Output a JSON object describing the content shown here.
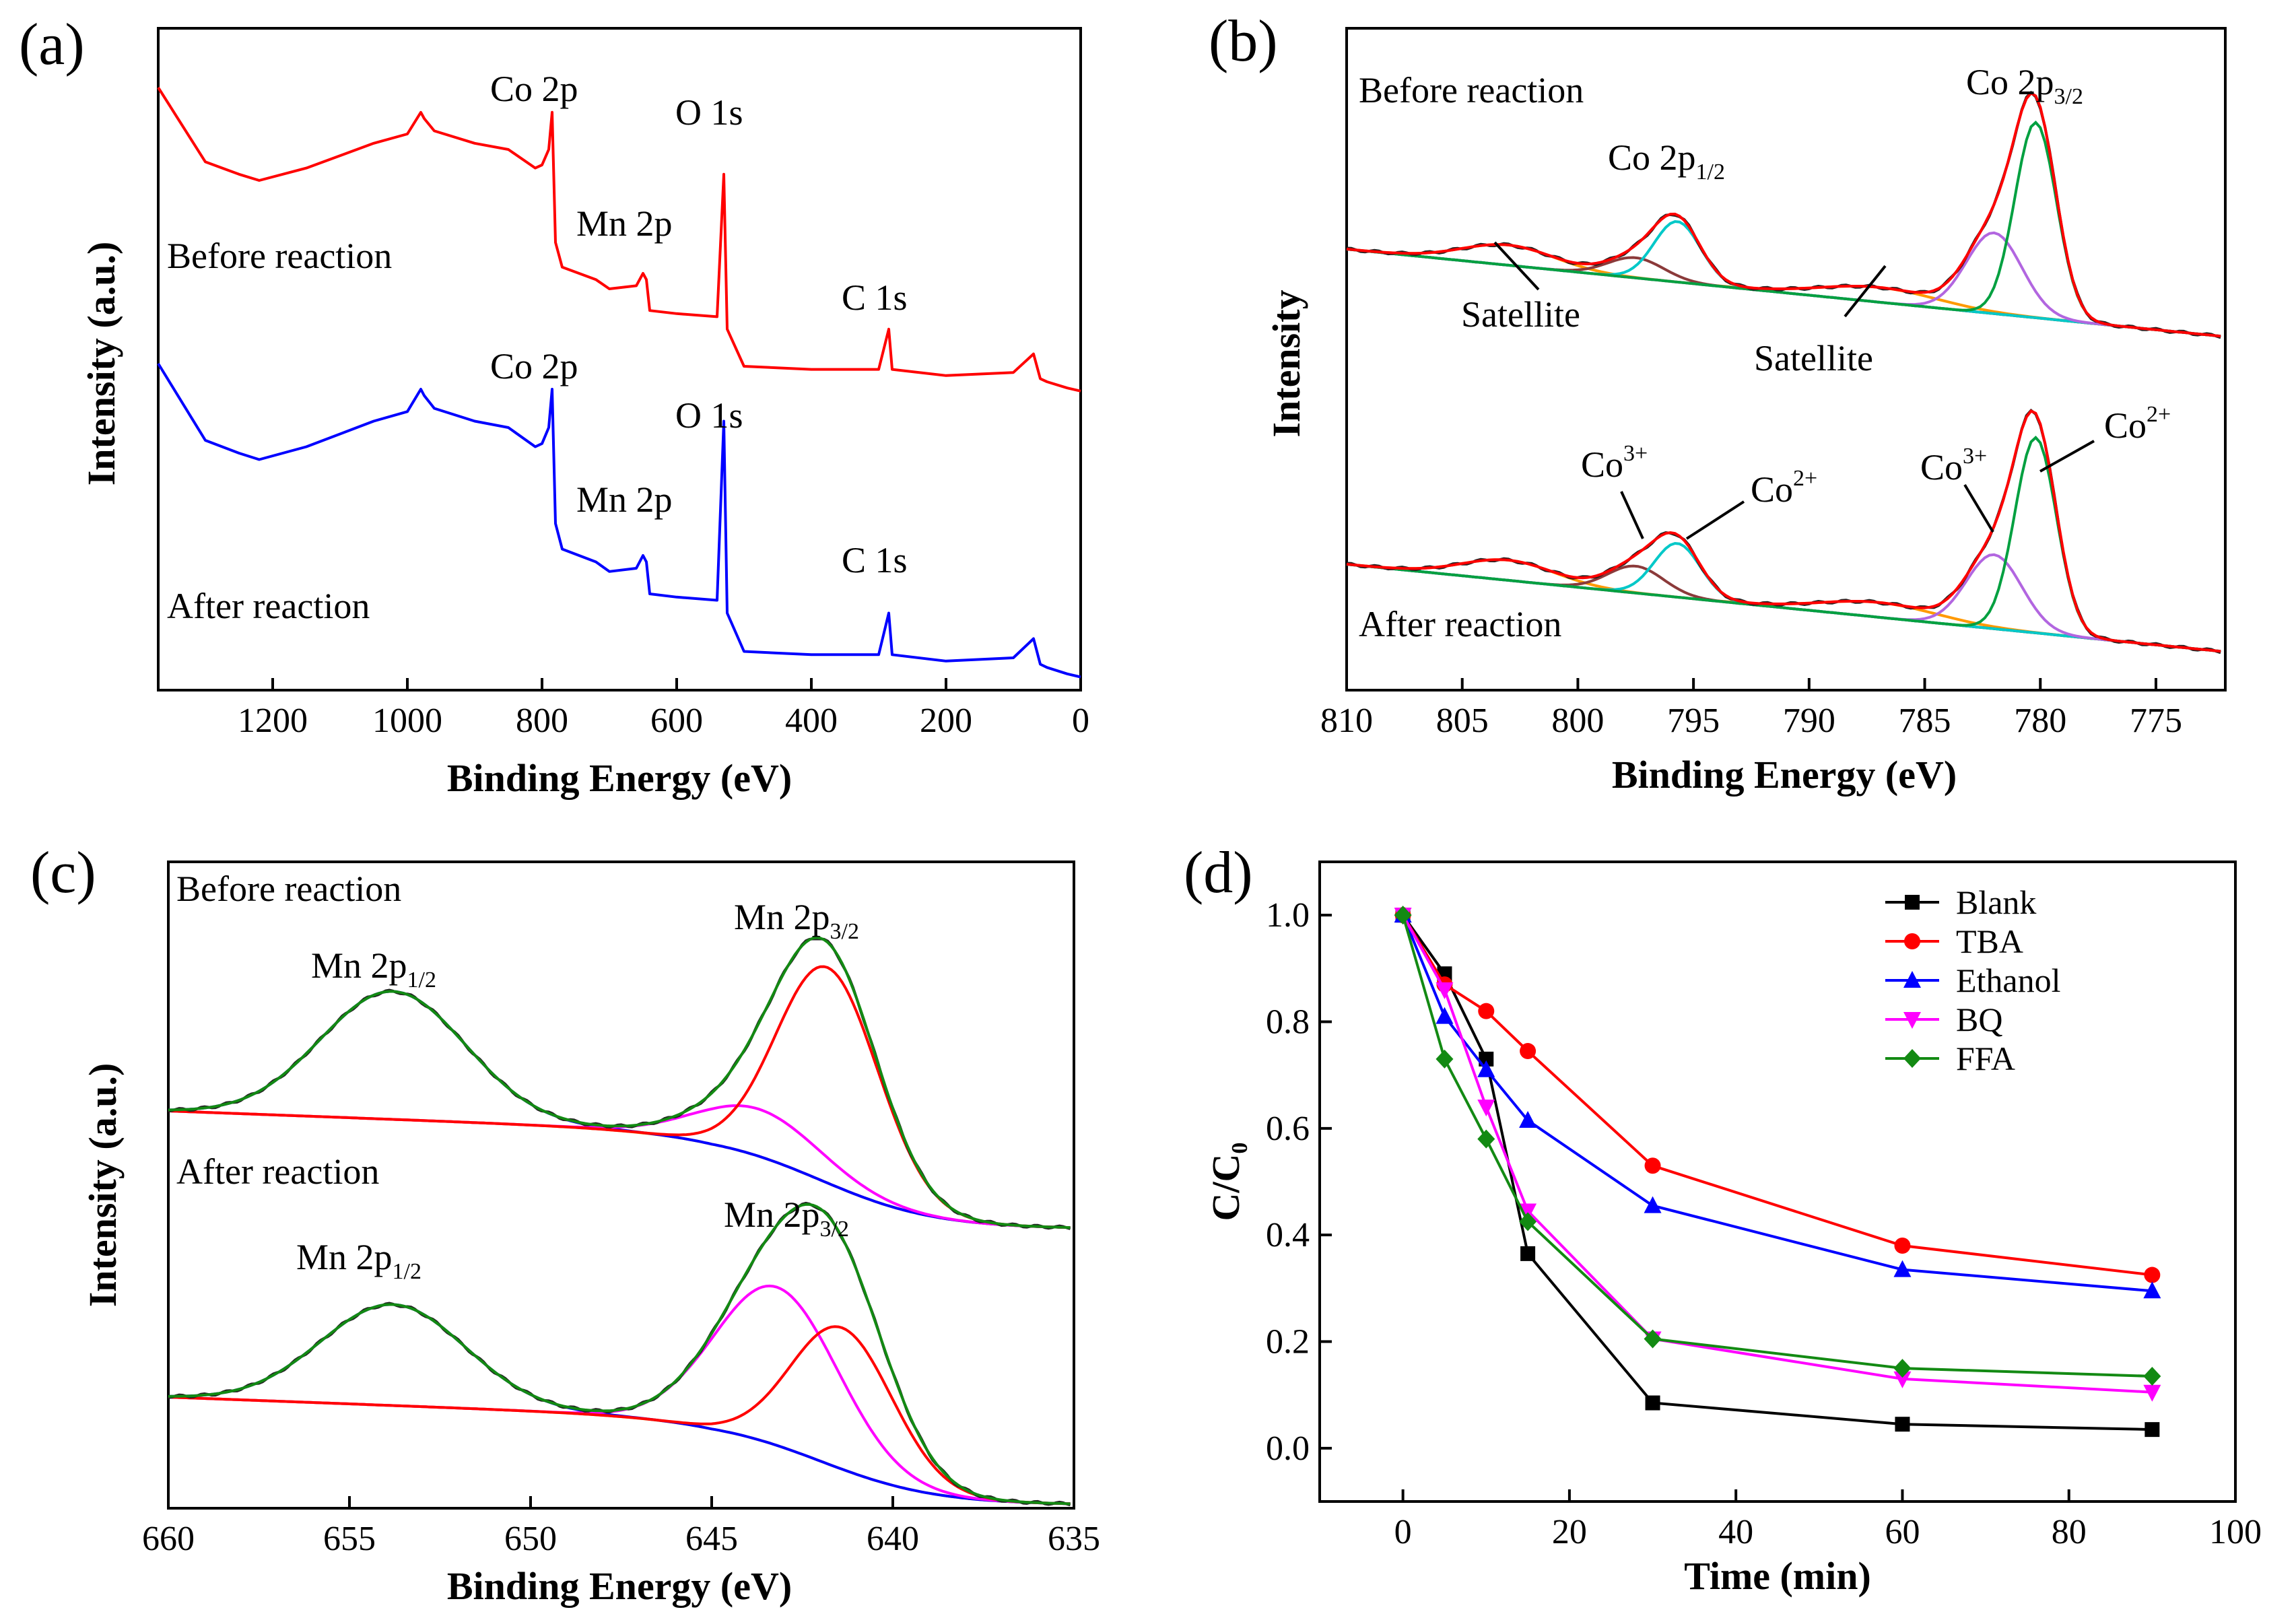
{
  "colors": {
    "red": "#ff0000",
    "blue": "#0000ff",
    "black": "#000000",
    "cyan": "#00c8c8",
    "green": "#00a040",
    "purple": "#b266e0",
    "brown": "#8b3a3a",
    "orange": "#ff9900",
    "olive": "#a09a20",
    "magenta": "#ff00ff",
    "darkgreen": "#138a13"
  },
  "chart_data": [
    {
      "panel": "(a)",
      "type": "line",
      "xlabel": "Binding Energy (eV)",
      "ylabel": "Intensity (a.u.)",
      "xlim": [
        1370,
        0
      ],
      "xticks": [
        "1200",
        "1000",
        "800",
        "600",
        "400",
        "200",
        "0"
      ],
      "xtick_values": [
        1200,
        1000,
        800,
        600,
        400,
        200,
        0
      ],
      "series": [
        {
          "name": "Before reaction",
          "color": "red",
          "x": [
            1370,
            1300,
            1250,
            1220,
            1150,
            1050,
            1000,
            980,
            975,
            960,
            900,
            850,
            810,
            800,
            790,
            785,
            780,
            770,
            720,
            700,
            660,
            650,
            645,
            640,
            600,
            540,
            530,
            525,
            500,
            400,
            300,
            285,
            280,
            200,
            100,
            70,
            60,
            50,
            20,
            0
          ],
          "y": [
            1.0,
            0.76,
            0.72,
            0.7,
            0.74,
            0.82,
            0.85,
            0.92,
            0.9,
            0.86,
            0.82,
            0.8,
            0.74,
            0.75,
            0.8,
            0.92,
            0.5,
            0.42,
            0.38,
            0.35,
            0.36,
            0.4,
            0.38,
            0.28,
            0.27,
            0.26,
            0.72,
            0.22,
            0.1,
            0.09,
            0.09,
            0.22,
            0.09,
            0.07,
            0.08,
            0.14,
            0.06,
            0.05,
            0.03,
            0.02
          ]
        },
        {
          "name": "After reaction",
          "color": "blue",
          "x": [
            1370,
            1300,
            1250,
            1220,
            1150,
            1050,
            1000,
            980,
            975,
            960,
            900,
            850,
            810,
            800,
            790,
            785,
            780,
            770,
            720,
            700,
            660,
            650,
            645,
            640,
            600,
            540,
            530,
            525,
            500,
            400,
            300,
            285,
            280,
            200,
            100,
            70,
            60,
            50,
            20,
            0
          ],
          "y": [
            1.0,
            0.76,
            0.72,
            0.7,
            0.74,
            0.82,
            0.85,
            0.92,
            0.9,
            0.86,
            0.82,
            0.8,
            0.74,
            0.75,
            0.8,
            0.92,
            0.5,
            0.42,
            0.38,
            0.35,
            0.36,
            0.4,
            0.38,
            0.28,
            0.27,
            0.26,
            0.82,
            0.22,
            0.1,
            0.09,
            0.09,
            0.22,
            0.09,
            0.07,
            0.08,
            0.14,
            0.06,
            0.05,
            0.03,
            0.02
          ]
        }
      ],
      "annotations": [
        "Co 2p",
        "O 1s",
        "Mn 2p",
        "C 1s",
        "Before reaction",
        "Co 2p",
        "O 1s",
        "Mn 2p",
        "C 1s",
        "After reaction"
      ]
    },
    {
      "panel": "(b)",
      "type": "line",
      "xlabel": "Binding Energy (eV)",
      "ylabel": "Intensity",
      "xlim": [
        810,
        772
      ],
      "xticks": [
        "810",
        "805",
        "800",
        "795",
        "790",
        "785",
        "780",
        "775"
      ],
      "xtick_values": [
        810,
        805,
        800,
        795,
        790,
        785,
        780,
        775
      ],
      "annotations": {
        "before": "Before reaction",
        "co2p12": "Co 2p",
        "co2p12_sub": "1/2",
        "co2p32": "Co 2p",
        "co2p32_sub": "3/2",
        "satellite1": "Satellite",
        "satellite2": "Satellite",
        "after": "After reaction",
        "co3_left": "Co",
        "co3_left_sup": "3+",
        "co2_left": "Co",
        "co2_left_sup": "2+",
        "co3_right": "Co",
        "co3_right_sup": "3+",
        "co2_right": "Co",
        "co2_right_sup": "2+"
      }
    },
    {
      "panel": "(c)",
      "type": "line",
      "xlabel": "Binding Energy (eV)",
      "ylabel": "Intensity (a.u.)",
      "xlim": [
        660,
        635
      ],
      "xticks": [
        "660",
        "655",
        "650",
        "645",
        "640",
        "635"
      ],
      "xtick_values": [
        660,
        655,
        650,
        645,
        640,
        635
      ],
      "annotations": {
        "before": "Before reaction",
        "after": "After reaction",
        "mn2p12_top": "Mn 2p",
        "mn2p12_top_sub": "1/2",
        "mn2p32_top": "Mn 2p",
        "mn2p32_top_sub": "3/2",
        "mn2p12_bot": "Mn 2p",
        "mn2p12_bot_sub": "1/2",
        "mn2p32_bot": "Mn 2p",
        "mn2p32_bot_sub": "3/2"
      }
    },
    {
      "panel": "(d)",
      "type": "line",
      "xlabel": "Time (min)",
      "ylabel": "C/C",
      "ylabel_sub": "0",
      "xlim": [
        -10,
        100
      ],
      "ylim": [
        -0.1,
        1.1
      ],
      "xticks": [
        "0",
        "20",
        "40",
        "60",
        "80",
        "100"
      ],
      "xtick_values": [
        0,
        20,
        40,
        60,
        80,
        100
      ],
      "yticks": [
        "0.0",
        "0.2",
        "0.4",
        "0.6",
        "0.8",
        "1.0"
      ],
      "ytick_values": [
        0.0,
        0.2,
        0.4,
        0.6,
        0.8,
        1.0
      ],
      "x": [
        0,
        5,
        10,
        15,
        30,
        60,
        90
      ],
      "series": [
        {
          "name": "Blank",
          "color": "black",
          "marker": "square",
          "values": [
            1.0,
            0.89,
            0.73,
            0.365,
            0.085,
            0.045,
            0.035
          ]
        },
        {
          "name": "TBA",
          "color": "red",
          "marker": "circle",
          "values": [
            1.0,
            0.87,
            0.82,
            0.745,
            0.53,
            0.38,
            0.325
          ]
        },
        {
          "name": "Ethanol",
          "color": "blue",
          "marker": "triangle-up",
          "values": [
            1.0,
            0.81,
            0.71,
            0.615,
            0.455,
            0.335,
            0.295
          ]
        },
        {
          "name": "BQ",
          "color": "magenta",
          "marker": "triangle-down",
          "values": [
            1.0,
            0.86,
            0.64,
            0.445,
            0.205,
            0.13,
            0.105
          ]
        },
        {
          "name": "FFA",
          "color": "darkgreen",
          "marker": "diamond",
          "values": [
            1.0,
            0.73,
            0.58,
            0.425,
            0.205,
            0.15,
            0.135
          ]
        }
      ]
    }
  ]
}
